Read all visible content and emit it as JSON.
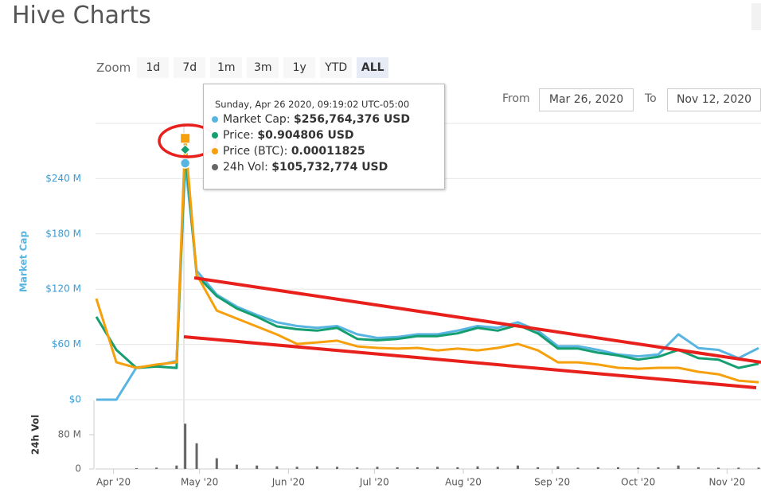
{
  "header": {
    "title": "Hive Charts"
  },
  "zoom": {
    "label": "Zoom",
    "buttons": [
      "1d",
      "7d",
      "1m",
      "3m",
      "1y",
      "YTD",
      "ALL"
    ],
    "active": 6
  },
  "range": {
    "from_label": "From",
    "from": "Mar 26, 2020",
    "to_label": "To",
    "to": "Nov 12, 2020"
  },
  "tooltip": {
    "date": "Sunday, Apr 26 2020, 09:19:02 UTC-05:00",
    "rows": [
      {
        "label": "Market Cap:",
        "value": "$256,764,376 USD"
      },
      {
        "label": "Price:",
        "value": "$0.904806 USD"
      },
      {
        "label": "Price (BTC):",
        "value": "0.00011825"
      },
      {
        "label": "24h Vol:",
        "value": "$105,732,774 USD"
      }
    ]
  },
  "chart_data": [
    {
      "type": "line",
      "y_label": "Market Cap",
      "x": [
        "2020-03-26",
        "2020-04-02",
        "2020-04-09",
        "2020-04-16",
        "2020-04-23",
        "2020-04-26",
        "2020-04-30",
        "2020-05-07",
        "2020-05-14",
        "2020-05-21",
        "2020-05-28",
        "2020-06-04",
        "2020-06-11",
        "2020-06-18",
        "2020-06-25",
        "2020-07-02",
        "2020-07-09",
        "2020-07-16",
        "2020-07-23",
        "2020-07-30",
        "2020-08-06",
        "2020-08-13",
        "2020-08-20",
        "2020-08-27",
        "2020-09-03",
        "2020-09-10",
        "2020-09-17",
        "2020-09-24",
        "2020-10-01",
        "2020-10-08",
        "2020-10-15",
        "2020-10-22",
        "2020-10-29",
        "2020-11-05",
        "2020-11-12"
      ],
      "xlim": [
        "2020-03-26",
        "2020-11-12"
      ],
      "xticks": [
        {
          "value": "2020-04-01",
          "label": "Apr '20"
        },
        {
          "value": "2020-05-01",
          "label": "May '20"
        },
        {
          "value": "2020-06-01",
          "label": "Jun '20"
        },
        {
          "value": "2020-07-01",
          "label": "Jul '20"
        },
        {
          "value": "2020-08-01",
          "label": "Aug '20"
        },
        {
          "value": "2020-09-01",
          "label": "Sep '20"
        },
        {
          "value": "2020-10-01",
          "label": "Oct '20"
        },
        {
          "value": "2020-11-01",
          "label": "Nov '20"
        }
      ],
      "ylim": [
        0,
        300000000
      ],
      "yticks": [
        {
          "value": 0,
          "label": "$0"
        },
        {
          "value": 60000000,
          "label": "$60 M"
        },
        {
          "value": 120000000,
          "label": "$120 M"
        },
        {
          "value": 180000000,
          "label": "$180 M"
        },
        {
          "value": 240000000,
          "label": "$240 M"
        }
      ],
      "y2lim": [
        0,
        1
      ],
      "y3lim": [
        0,
        0.000125
      ],
      "grid": true,
      "series": [
        {
          "color": "#58b5e1",
          "axis": "y",
          "values": [
            0,
            0,
            35000000,
            37000000,
            42000000,
            256764376,
            140000000,
            114000000,
            101000000,
            92000000,
            84000000,
            80000000,
            78000000,
            80000000,
            71000000,
            67000000,
            68000000,
            71000000,
            71000000,
            75000000,
            80000000,
            78000000,
            84000000,
            75000000,
            58000000,
            58000000,
            54000000,
            49000000,
            47000000,
            49000000,
            71000000,
            56000000,
            54000000,
            45000000,
            56000000
          ]
        },
        {
          "color": "#159e70",
          "axis": "y2",
          "values": [
            0.3,
            0.18,
            0.115,
            0.12,
            0.115,
            0.904806,
            0.45,
            0.375,
            0.33,
            0.3,
            0.265,
            0.255,
            0.25,
            0.26,
            0.22,
            0.215,
            0.22,
            0.23,
            0.23,
            0.24,
            0.26,
            0.25,
            0.27,
            0.24,
            0.185,
            0.185,
            0.17,
            0.16,
            0.145,
            0.155,
            0.18,
            0.15,
            0.145,
            0.115,
            0.13
          ]
        },
        {
          "color": "#f5a00c",
          "axis": "y3",
          "values": [
            4.57e-05,
            1.69e-05,
            1.44e-05,
            1.59e-05,
            1.69e-05,
            0.00011825,
            5.66e-05,
            4.03e-05,
            3.67e-05,
            3.31e-05,
            2.95e-05,
            2.52e-05,
            2.59e-05,
            2.67e-05,
            2.41e-05,
            2.34e-05,
            2.31e-05,
            2.34e-05,
            2.23e-05,
            2.31e-05,
            2.23e-05,
            2.34e-05,
            2.52e-05,
            2.23e-05,
            1.69e-05,
            1.69e-05,
            1.59e-05,
            1.44e-05,
            1.4e-05,
            1.44e-05,
            1.44e-05,
            1.26e-05,
            1.15e-05,
            8.6e-06,
            7.9e-06
          ]
        }
      ]
    },
    {
      "type": "bar",
      "y_label": "24h Vol",
      "x": [
        "2020-03-26",
        "2020-04-02",
        "2020-04-09",
        "2020-04-16",
        "2020-04-23",
        "2020-04-26",
        "2020-04-30",
        "2020-05-07",
        "2020-05-14",
        "2020-05-21",
        "2020-05-28",
        "2020-06-04",
        "2020-06-11",
        "2020-06-18",
        "2020-06-25",
        "2020-07-02",
        "2020-07-09",
        "2020-07-16",
        "2020-07-23",
        "2020-07-30",
        "2020-08-06",
        "2020-08-13",
        "2020-08-20",
        "2020-08-27",
        "2020-09-03",
        "2020-09-10",
        "2020-09-17",
        "2020-09-24",
        "2020-10-01",
        "2020-10-08",
        "2020-10-15",
        "2020-10-22",
        "2020-10-29",
        "2020-11-05",
        "2020-11-12"
      ],
      "xlim": [
        "2020-03-26",
        "2020-11-12"
      ],
      "ylim": [
        0,
        160000000
      ],
      "yticks": [
        0,
        {
          "value": 80000000,
          "label": "80 M"
        }
      ],
      "color": "#666666",
      "values": [
        0,
        0,
        2000000,
        3000000,
        8000000,
        105732774,
        60000000,
        25000000,
        10000000,
        8000000,
        6000000,
        5000000,
        6000000,
        5000000,
        4000000,
        5000000,
        4000000,
        4000000,
        5000000,
        4000000,
        6000000,
        5000000,
        8000000,
        4000000,
        6000000,
        3000000,
        4000000,
        4000000,
        3000000,
        4000000,
        8000000,
        4000000,
        3000000,
        3000000,
        3000000
      ]
    }
  ]
}
